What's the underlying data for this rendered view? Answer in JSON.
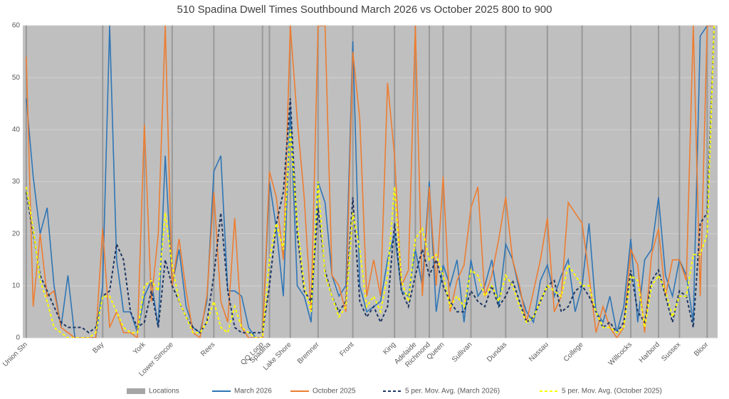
{
  "chart_data": {
    "type": "line",
    "title": "510 Spadina Dwell Times Southbound March 2026 vs October 2025 800 to 900",
    "categories": [
      "Union Stn",
      null,
      null,
      null,
      null,
      null,
      null,
      null,
      null,
      null,
      null,
      "Bay",
      null,
      null,
      null,
      null,
      null,
      "York",
      null,
      null,
      null,
      "Lower Simcoe",
      null,
      null,
      null,
      null,
      null,
      "Rees",
      null,
      null,
      null,
      null,
      null,
      null,
      "QQ Loop",
      "Spadina",
      null,
      null,
      "Lake Shore",
      null,
      null,
      null,
      "Bremner",
      null,
      null,
      null,
      null,
      "Front",
      null,
      null,
      null,
      null,
      null,
      "King",
      null,
      null,
      "Adelaide",
      null,
      "Richmond",
      null,
      "Queen",
      null,
      null,
      null,
      "Sullivan",
      null,
      null,
      null,
      null,
      "Dundas",
      null,
      null,
      null,
      null,
      null,
      "Nassau",
      null,
      null,
      null,
      null,
      "College",
      null,
      null,
      null,
      null,
      null,
      null,
      "Willcocks",
      null,
      null,
      null,
      "Harbord",
      null,
      null,
      "Sussex",
      null,
      null,
      null,
      "Bloor",
      null
    ],
    "ylim": [
      0,
      60
    ],
    "yticks": [
      0,
      10,
      20,
      30,
      40,
      50,
      60
    ],
    "grid": true,
    "legend": "bottom",
    "series": [
      {
        "name": "Locations",
        "type": "bar",
        "color": "#a6a6a6",
        "values": [
          60,
          null,
          null,
          null,
          null,
          null,
          null,
          null,
          null,
          null,
          null,
          60,
          null,
          null,
          null,
          null,
          null,
          60,
          null,
          null,
          null,
          60,
          null,
          null,
          null,
          null,
          null,
          60,
          null,
          null,
          null,
          null,
          null,
          null,
          60,
          60,
          null,
          null,
          60,
          null,
          null,
          null,
          60,
          null,
          null,
          null,
          null,
          60,
          null,
          null,
          null,
          null,
          null,
          60,
          null,
          null,
          60,
          null,
          60,
          null,
          60,
          null,
          null,
          null,
          60,
          null,
          null,
          null,
          null,
          60,
          null,
          null,
          null,
          null,
          null,
          60,
          null,
          null,
          null,
          null,
          60,
          null,
          null,
          null,
          null,
          null,
          null,
          60,
          null,
          null,
          null,
          60,
          null,
          null,
          60,
          null,
          null,
          null,
          60,
          null
        ]
      },
      {
        "name": "March 2026",
        "color": "#2e75b6",
        "dashed": false,
        "values": [
          46,
          31,
          20,
          25,
          10,
          2,
          12,
          0,
          0,
          0,
          0,
          10,
          60,
          15,
          5,
          5,
          1,
          8,
          11,
          2,
          35,
          10,
          17,
          6,
          2,
          1,
          7,
          32,
          35,
          9,
          9,
          8,
          2,
          0,
          0,
          30,
          21,
          8,
          44,
          10,
          8,
          3,
          30,
          26,
          12,
          8,
          10,
          57,
          10,
          5,
          6,
          7,
          15,
          20,
          9,
          8,
          17,
          10,
          30,
          5,
          14,
          10,
          15,
          3,
          15,
          8,
          10,
          15,
          6,
          18,
          15,
          9,
          5,
          3,
          11,
          14,
          8,
          12,
          15,
          5,
          10,
          22,
          5,
          3,
          8,
          1,
          6,
          19,
          3,
          15,
          17,
          27,
          12,
          8,
          15,
          12,
          3,
          58,
          60,
          60
        ]
      },
      {
        "name": "October 2025",
        "color": "#ed7d31",
        "dashed": false,
        "values": [
          54,
          6,
          20,
          8,
          9,
          2,
          1,
          0,
          0,
          0,
          0,
          21,
          2,
          5,
          1,
          1,
          0,
          41,
          7,
          20,
          60,
          10,
          19,
          9,
          1,
          0,
          8,
          28,
          7,
          3,
          23,
          2,
          0,
          0,
          0,
          32,
          27,
          15,
          60,
          42,
          27,
          5,
          60,
          60,
          12,
          10,
          5,
          55,
          42,
          8,
          15,
          8,
          49,
          35,
          10,
          13,
          60,
          8,
          29,
          10,
          31,
          5,
          11,
          14,
          25,
          29,
          8,
          12,
          19,
          27,
          15,
          10,
          3,
          9,
          15,
          23,
          5,
          8,
          26,
          24,
          22,
          12,
          1,
          6,
          2,
          0,
          2,
          17,
          14,
          1,
          16,
          21,
          8,
          15,
          15,
          11,
          60,
          8,
          60,
          60
        ]
      },
      {
        "name": "5 per. Mov. Avg. (March 2026)",
        "color": "#1f3864",
        "dashed": true,
        "values": [
          28,
          20,
          12,
          9,
          6,
          3,
          2,
          2,
          2,
          1,
          2,
          8,
          9,
          18,
          15,
          5,
          2,
          3,
          9,
          2,
          15,
          10,
          7,
          4,
          2,
          1,
          3,
          12,
          24,
          9,
          2,
          1,
          1,
          1,
          1,
          10,
          22,
          28,
          46,
          20,
          9,
          7,
          25,
          13,
          8,
          5,
          7,
          27,
          7,
          4,
          6,
          3,
          6,
          22,
          9,
          6,
          12,
          17,
          12,
          15,
          10,
          7,
          5,
          5,
          9,
          7,
          6,
          10,
          6,
          8,
          11,
          7,
          3,
          4,
          7,
          10,
          11,
          5,
          6,
          9,
          10,
          8,
          5,
          2,
          3,
          1,
          3,
          13,
          5,
          3,
          11,
          13,
          8,
          3,
          9,
          8,
          2,
          22,
          24,
          60
        ]
      },
      {
        "name": "5 per. Mov. Avg. (October 2025)",
        "color": "#ffff00",
        "dashed": true,
        "values": [
          29,
          21,
          11,
          7,
          2,
          1,
          0,
          0,
          0,
          0,
          1,
          8,
          8,
          5,
          2,
          1,
          1,
          10,
          11,
          9,
          24,
          14,
          7,
          4,
          1,
          1,
          3,
          7,
          2,
          1,
          6,
          2,
          1,
          0,
          0,
          15,
          22,
          17,
          40,
          22,
          10,
          5,
          30,
          12,
          8,
          4,
          6,
          24,
          17,
          6,
          8,
          5,
          12,
          29,
          11,
          7,
          19,
          21,
          15,
          16,
          12,
          6,
          8,
          6,
          13,
          12,
          8,
          10,
          7,
          12,
          10,
          6,
          3,
          4,
          7,
          10,
          9,
          8,
          14,
          12,
          10,
          10,
          5,
          2,
          2,
          1,
          2,
          12,
          11,
          2,
          10,
          12,
          9,
          4,
          8,
          8,
          16,
          16,
          20,
          60
        ]
      }
    ]
  }
}
